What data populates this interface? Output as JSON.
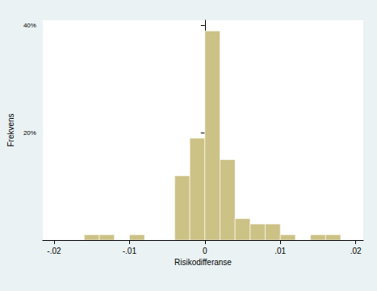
{
  "chart_data": {
    "type": "histogram",
    "x_label": "Risikodifferanse",
    "y_label": "Frekvens",
    "bins": [
      -0.016,
      -0.014,
      -0.012,
      -0.01,
      -0.008,
      -0.006,
      -0.004,
      -0.002,
      0,
      0.002,
      0.004,
      0.006,
      0.008,
      0.01,
      0.012,
      0.014,
      0.016,
      0.018
    ],
    "counts": [
      1,
      1,
      0,
      1,
      0,
      0,
      12,
      19,
      39,
      15,
      4,
      3,
      3,
      1,
      0,
      1,
      1
    ],
    "color": "#cdc286",
    "xlim": [
      -0.0215,
      0.021
    ],
    "xticks": [
      {
        "value": -0.02,
        "label": "-.02"
      },
      {
        "value": -0.01,
        "label": "-.01"
      },
      0,
      {
        "value": 0.01,
        "label": ".01"
      },
      {
        "value": 0.02,
        "label": ".02"
      }
    ],
    "ylim": [
      0,
      41
    ],
    "yticks": [
      {
        "value": 20,
        "label": "20%"
      },
      {
        "value": 40,
        "label": "40%"
      }
    ],
    "grid": false
  }
}
